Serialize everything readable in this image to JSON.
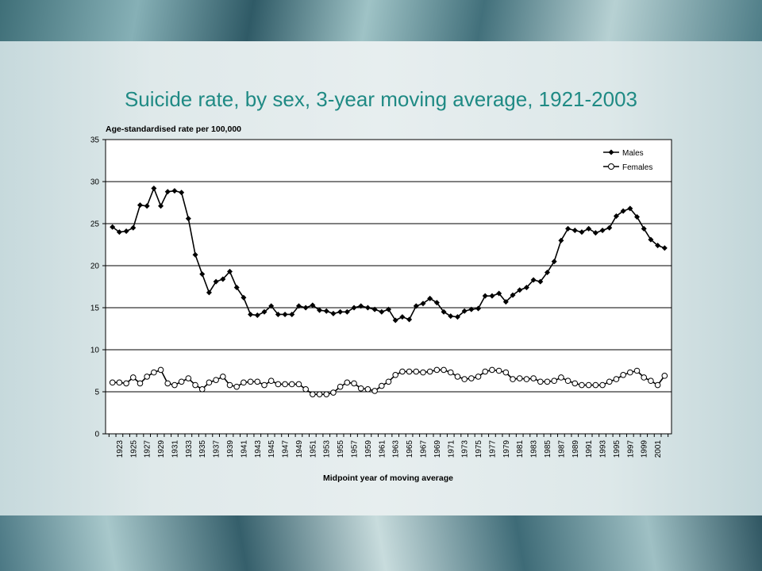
{
  "slide": {
    "title": "Suicide rate, by sex, 3-year moving average, 1921-2003"
  },
  "chart_data": {
    "type": "line",
    "title": "Suicide rate, by sex, 3-year moving average, 1921-2003",
    "ylabel": "Age-standardised rate per 100,000",
    "xlabel": "Midpoint year of moving average",
    "ylim": [
      0,
      35
    ],
    "yticks": [
      0,
      5,
      10,
      15,
      20,
      25,
      30,
      35
    ],
    "grid": "horizontal",
    "legend_position": "top-right",
    "x": [
      1922,
      1923,
      1924,
      1925,
      1926,
      1927,
      1928,
      1929,
      1930,
      1931,
      1932,
      1933,
      1934,
      1935,
      1936,
      1937,
      1938,
      1939,
      1940,
      1941,
      1942,
      1943,
      1944,
      1945,
      1946,
      1947,
      1948,
      1949,
      1950,
      1951,
      1952,
      1953,
      1954,
      1955,
      1956,
      1957,
      1958,
      1959,
      1960,
      1961,
      1962,
      1963,
      1964,
      1965,
      1966,
      1967,
      1968,
      1969,
      1970,
      1971,
      1972,
      1973,
      1974,
      1975,
      1976,
      1977,
      1978,
      1979,
      1980,
      1981,
      1982,
      1983,
      1984,
      1985,
      1986,
      1987,
      1988,
      1989,
      1990,
      1991,
      1992,
      1993,
      1994,
      1995,
      1996,
      1997,
      1998,
      1999,
      2000,
      2001,
      2002
    ],
    "xtick_labels": [
      "1923",
      "1925",
      "1927",
      "1929",
      "1931",
      "1933",
      "1935",
      "1937",
      "1939",
      "1941",
      "1943",
      "1945",
      "1947",
      "1949",
      "1951",
      "1953",
      "1955",
      "1957",
      "1959",
      "1961",
      "1963",
      "1965",
      "1967",
      "1969",
      "1971",
      "1973",
      "1975",
      "1977",
      "1979",
      "1981",
      "1983",
      "1985",
      "1987",
      "1989",
      "1991",
      "1993",
      "1995",
      "1997",
      "1999",
      "2001"
    ],
    "series": [
      {
        "name": "Males",
        "marker": "filled-diamond",
        "color": "#000000",
        "values": [
          24.6,
          24.0,
          24.1,
          24.5,
          27.2,
          27.1,
          29.2,
          27.1,
          28.8,
          28.9,
          28.7,
          25.6,
          21.3,
          19.0,
          16.8,
          18.1,
          18.4,
          19.3,
          17.4,
          16.2,
          14.2,
          14.1,
          14.5,
          15.2,
          14.2,
          14.2,
          14.2,
          15.2,
          15.0,
          15.3,
          14.7,
          14.6,
          14.3,
          14.5,
          14.5,
          15.0,
          15.2,
          15.0,
          14.8,
          14.5,
          14.8,
          13.5,
          13.9,
          13.6,
          15.2,
          15.5,
          16.1,
          15.6,
          14.5,
          14.0,
          13.9,
          14.6,
          14.8,
          14.9,
          16.4,
          16.4,
          16.7,
          15.7,
          16.5,
          17.1,
          17.4,
          18.3,
          18.1,
          19.2,
          20.5,
          23.0,
          24.4,
          24.2,
          24.0,
          24.4,
          23.9,
          24.2,
          24.5,
          25.9,
          26.5,
          26.8,
          25.8,
          24.4,
          23.1,
          22.4,
          22.1
        ]
      },
      {
        "name": "Females",
        "marker": "open-circle",
        "color": "#000000",
        "values": [
          6.1,
          6.1,
          6.0,
          6.7,
          6.0,
          6.8,
          7.3,
          7.6,
          6.0,
          5.8,
          6.2,
          6.6,
          5.8,
          5.3,
          6.1,
          6.4,
          6.8,
          5.8,
          5.6,
          6.1,
          6.2,
          6.2,
          5.8,
          6.3,
          5.9,
          5.9,
          5.9,
          5.9,
          5.3,
          4.7,
          4.7,
          4.7,
          4.9,
          5.6,
          6.1,
          6.0,
          5.4,
          5.3,
          5.1,
          5.7,
          6.2,
          7.0,
          7.4,
          7.4,
          7.4,
          7.3,
          7.4,
          7.6,
          7.6,
          7.3,
          6.8,
          6.5,
          6.6,
          6.8,
          7.4,
          7.6,
          7.5,
          7.3,
          6.5,
          6.6,
          6.5,
          6.6,
          6.2,
          6.2,
          6.3,
          6.7,
          6.3,
          6.0,
          5.8,
          5.8,
          5.8,
          5.8,
          6.2,
          6.5,
          7.0,
          7.3,
          7.5,
          6.7,
          6.3,
          5.8,
          6.9
        ]
      }
    ]
  }
}
